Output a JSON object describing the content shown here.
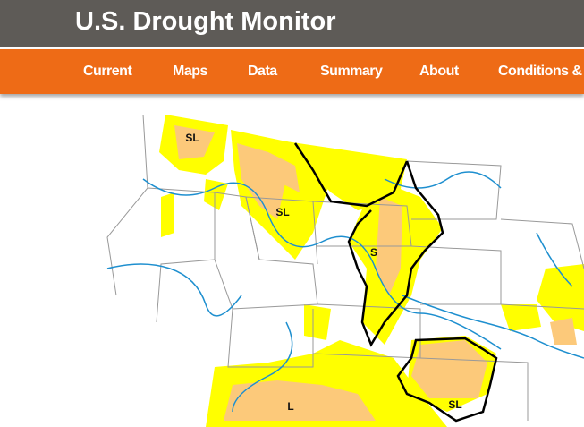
{
  "header": {
    "title": "U.S. Drought Monitor"
  },
  "nav": {
    "items": [
      "Current",
      "Maps",
      "Data",
      "Summary",
      "About",
      "Conditions & Outlooks"
    ]
  },
  "map": {
    "labels": [
      "SL",
      "SL",
      "S",
      "L",
      "SL"
    ]
  }
}
